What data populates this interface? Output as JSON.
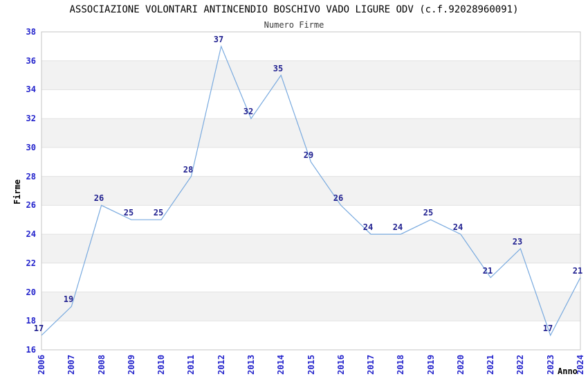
{
  "chart_data": {
    "type": "line",
    "title": "ASSOCIAZIONE VOLONTARI ANTINCENDIO BOSCHIVO VADO LIGURE ODV (c.f.92028960091)",
    "subtitle": "Numero Firme",
    "xlabel": "Anno",
    "ylabel": "Firme",
    "categories": [
      "2006",
      "2007",
      "2008",
      "2009",
      "2010",
      "2011",
      "2012",
      "2013",
      "2014",
      "2015",
      "2016",
      "2017",
      "2018",
      "2019",
      "2020",
      "2021",
      "2022",
      "2023",
      "2024"
    ],
    "values": [
      17,
      19,
      26,
      25,
      25,
      28,
      37,
      32,
      35,
      29,
      26,
      24,
      24,
      25,
      24,
      21,
      23,
      17,
      21
    ],
    "ylim": [
      16,
      38
    ],
    "ytick_step": 2,
    "grid": "horizontal-alternating-bands",
    "legend": "none",
    "point_labels_visible": true,
    "colors": {
      "line": "#79aadf",
      "point_label": "#1f1f8f",
      "tick_label": "#2323cc",
      "band_gray": "#f2f2f2",
      "band_white": "#ffffff",
      "grid_line": "#e2e2e2",
      "plot_border": "#c5c5c5",
      "title": "#000000",
      "subtitle": "#383838",
      "axis_label": "#000000"
    }
  }
}
